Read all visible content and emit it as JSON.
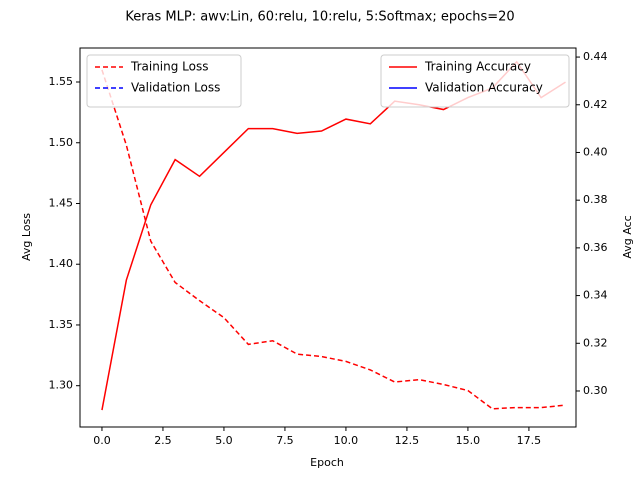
{
  "chart_data": {
    "type": "line",
    "title": "Keras MLP: awv:Lin, 60:relu, 10:relu, 5:Softmax; epochs=20",
    "xlabel": "Epoch",
    "ylabel": "Avg Loss",
    "y2label": "Avg Acc",
    "x": [
      0,
      1,
      2,
      3,
      4,
      5,
      6,
      7,
      8,
      9,
      10,
      11,
      12,
      13,
      14,
      15,
      16,
      17,
      18,
      19
    ],
    "series": [
      {
        "name": "Training Loss",
        "color": "#ff0000",
        "linestyle": "dashed",
        "axis": "y",
        "values": [
          1.56,
          1.498,
          1.419,
          1.385,
          1.37,
          1.356,
          1.334,
          1.337,
          1.326,
          1.324,
          1.32,
          1.313,
          1.303,
          1.305,
          1.301,
          1.296,
          1.281,
          1.282,
          1.282,
          1.284
        ]
      },
      {
        "name": "Validation Loss",
        "color": "#0000ff",
        "linestyle": "dashed",
        "axis": "y",
        "values": [
          null,
          null,
          null,
          null,
          null,
          null,
          null,
          null,
          null,
          null,
          null,
          null,
          null,
          null,
          null,
          null,
          null,
          null,
          null,
          null
        ]
      },
      {
        "name": "Training Accuracy",
        "color": "#ff0000",
        "linestyle": "solid",
        "axis": "y2",
        "values": [
          0.292,
          0.3465,
          0.378,
          0.397,
          0.39,
          0.4,
          0.41,
          0.41,
          0.408,
          0.409,
          0.414,
          0.412,
          0.4215,
          0.42,
          0.418,
          0.423,
          0.427,
          0.438,
          0.423,
          0.4295
        ]
      },
      {
        "name": "Validation Accuracy",
        "color": "#0000ff",
        "linestyle": "solid",
        "axis": "y2",
        "values": [
          null,
          null,
          null,
          null,
          null,
          null,
          null,
          null,
          null,
          null,
          null,
          null,
          null,
          null,
          null,
          null,
          null,
          null,
          null,
          null
        ]
      }
    ],
    "xlim": [
      -0.9,
      19.43
    ],
    "xticks": [
      {
        "value": 0,
        "label": "0.0"
      },
      2.5,
      {
        "value": 5,
        "label": "5.0"
      },
      7.5,
      {
        "value": 10,
        "label": "10.0"
      },
      12.5,
      {
        "value": 15,
        "label": "15.0"
      },
      17.5
    ],
    "ylim": [
      1.266,
      1.578
    ],
    "yticks": [
      {
        "value": 1.3,
        "label": "1.30"
      },
      1.35,
      {
        "value": 1.4,
        "label": "1.40"
      },
      1.45,
      {
        "value": 1.5,
        "label": "1.50"
      },
      1.55
    ],
    "y2lim": [
      0.2849,
      0.4438
    ],
    "y2ticks": [
      {
        "value": 0.3,
        "label": "0.30"
      },
      0.32,
      0.34,
      0.36,
      0.38,
      {
        "value": 0.4,
        "label": "0.40"
      },
      0.42,
      0.44
    ],
    "legend": "upper left",
    "legend2": "upper right",
    "grid": false
  }
}
